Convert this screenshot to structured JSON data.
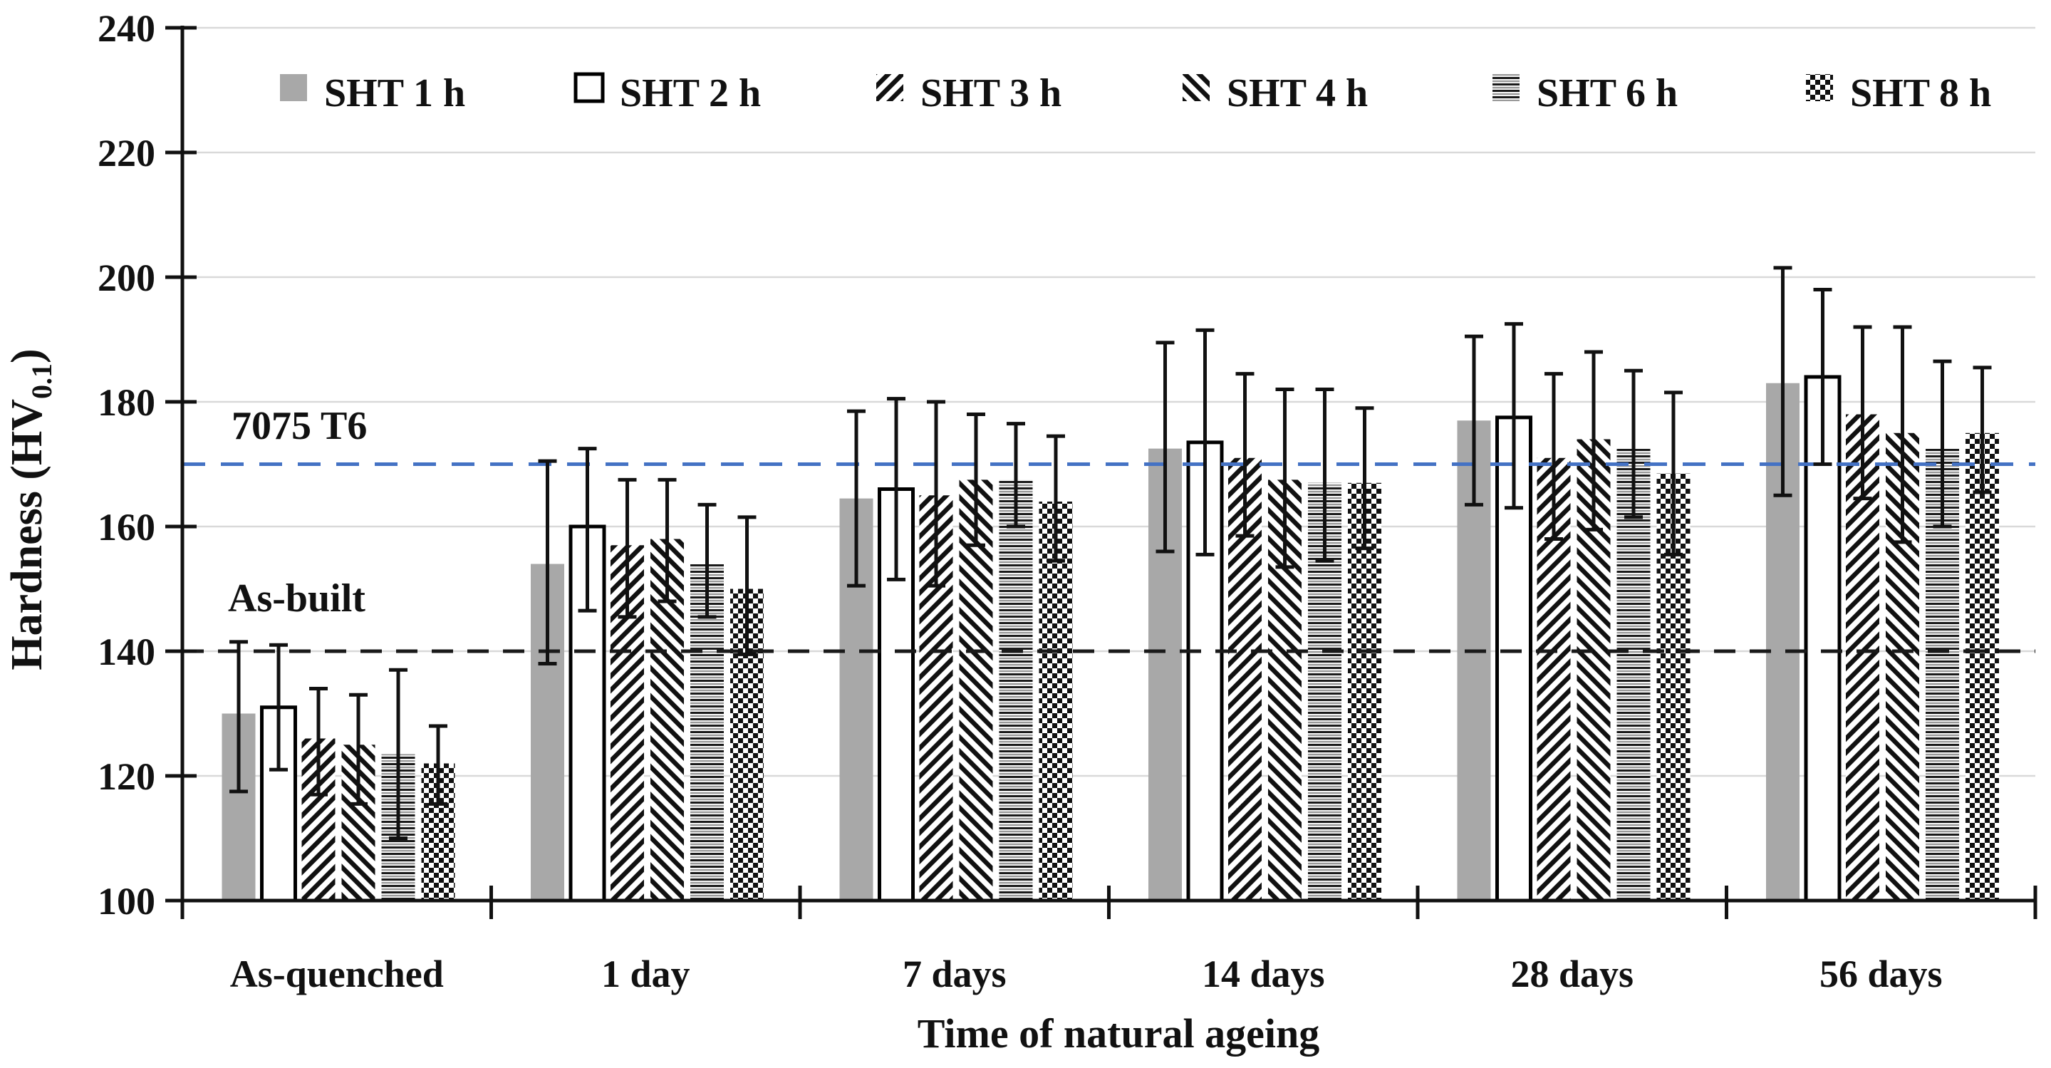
{
  "figure": {
    "background": "#ffffff",
    "grid_color": "#d9d9d9",
    "axis_color": "#111111"
  },
  "chart_data": {
    "type": "bar",
    "title": "",
    "xlabel": "Time of natural ageing",
    "ylabel": {
      "main": "Hardness (HV",
      "sub": "0.1",
      "end": ")"
    },
    "ylim": [
      100,
      240
    ],
    "ytick_step": 20,
    "grid": true,
    "legend_position": "top",
    "categories": [
      "As-quenched",
      "1 day",
      "7 days",
      "14 days",
      "28 days",
      "56 days"
    ],
    "series": [
      {
        "name": "SHT 1 h",
        "style": "solid-gray",
        "color": "#a8a8a8",
        "values": [
          130.0,
          154.0,
          164.5,
          172.5,
          177.0,
          183.0
        ],
        "err_upper": [
          141.5,
          170.5,
          178.5,
          189.5,
          190.5,
          201.5
        ],
        "err_lower": [
          117.5,
          138.0,
          150.5,
          156.0,
          163.5,
          165.0
        ]
      },
      {
        "name": "SHT 2 h",
        "style": "white-outline",
        "color": "#ffffff",
        "values": [
          131.0,
          160.0,
          166.0,
          173.5,
          177.5,
          184.0
        ],
        "err_upper": [
          141.0,
          172.5,
          180.5,
          191.5,
          192.5,
          198.0
        ],
        "err_lower": [
          121.0,
          146.5,
          151.5,
          155.5,
          163.0,
          170.0
        ]
      },
      {
        "name": "SHT 3 h",
        "style": "hatch-forward",
        "color": "#111111",
        "values": [
          126.0,
          157.0,
          165.0,
          171.0,
          171.0,
          178.0
        ],
        "err_upper": [
          134.0,
          167.5,
          180.0,
          184.5,
          184.5,
          192.0
        ],
        "err_lower": [
          117.0,
          145.5,
          150.5,
          158.5,
          158.0,
          164.5
        ]
      },
      {
        "name": "SHT 4 h",
        "style": "hatch-backward",
        "color": "#111111",
        "values": [
          125.0,
          158.0,
          167.5,
          167.5,
          174.0,
          175.0
        ],
        "err_upper": [
          133.0,
          167.5,
          178.0,
          182.0,
          188.0,
          192.0
        ],
        "err_lower": [
          115.5,
          148.0,
          157.0,
          153.5,
          159.5,
          157.5
        ]
      },
      {
        "name": "SHT 6 h",
        "style": "horizontal-stripes",
        "color": "#111111",
        "values": [
          123.5,
          154.0,
          167.5,
          167.0,
          172.5,
          172.5
        ],
        "err_upper": [
          137.0,
          163.5,
          176.5,
          182.0,
          185.0,
          186.5
        ],
        "err_lower": [
          110.0,
          145.5,
          160.0,
          154.5,
          161.5,
          160.0
        ]
      },
      {
        "name": "SHT 8 h",
        "style": "checkerboard",
        "color": "#111111",
        "values": [
          122.0,
          150.0,
          164.0,
          167.0,
          168.5,
          175.0
        ],
        "err_upper": [
          128.0,
          161.5,
          174.5,
          179.0,
          181.5,
          185.5
        ],
        "err_lower": [
          115.5,
          139.5,
          154.5,
          156.5,
          155.5,
          165.5
        ]
      }
    ],
    "reference_lines": [
      {
        "label": "7075 T6",
        "value": 170,
        "color": "#4472C4",
        "style": "dashed"
      },
      {
        "label": "As-built",
        "value": 140,
        "color": "#1a1a1a",
        "style": "dashed"
      }
    ],
    "yticks": [
      100,
      120,
      140,
      160,
      180,
      200,
      220,
      240
    ]
  }
}
